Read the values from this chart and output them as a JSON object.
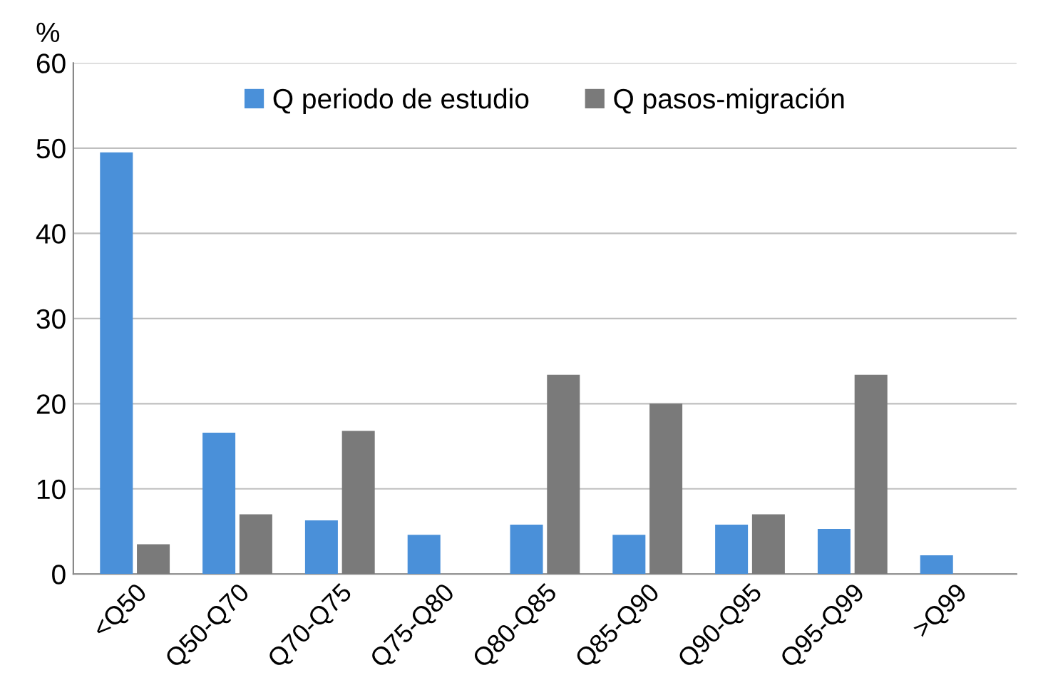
{
  "chart_data": {
    "type": "bar",
    "ylabel": "%",
    "categories": [
      "<Q50",
      "Q50-Q70",
      "Q70-Q75",
      "Q75-Q80",
      "Q80-Q85",
      "Q85-Q90",
      "Q90-Q95",
      "Q95-Q99",
      ">Q99"
    ],
    "series": [
      {
        "name": "Q periodo de estudio",
        "color": "#4a90d9",
        "values": [
          49.5,
          16.6,
          6.3,
          4.6,
          5.8,
          4.6,
          5.8,
          5.3,
          2.2
        ]
      },
      {
        "name": "Q pasos-migración",
        "color": "#7a7a7a",
        "values": [
          3.5,
          7,
          16.8,
          0,
          23.4,
          20,
          7,
          23.4,
          0
        ]
      }
    ],
    "ylim": [
      0,
      60
    ],
    "yticks": [
      0,
      10,
      20,
      30,
      40,
      50,
      60
    ],
    "grid": "y",
    "legend": "top"
  }
}
